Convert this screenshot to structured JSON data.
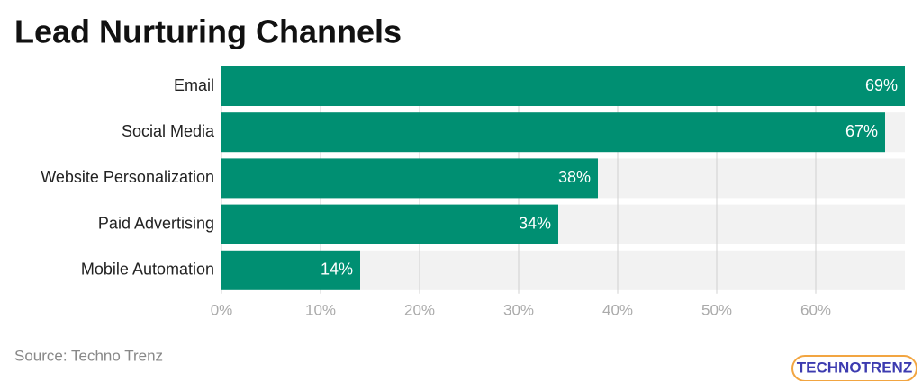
{
  "chart_data": {
    "type": "bar",
    "orientation": "horizontal",
    "title": "Lead Nurturing Channels",
    "categories": [
      "Email",
      "Social Media",
      "Website Personalization",
      "Paid Advertising",
      "Mobile Automation"
    ],
    "values": [
      69,
      67,
      38,
      34,
      14
    ],
    "value_labels": [
      "69%",
      "67%",
      "38%",
      "34%",
      "14%"
    ],
    "color": "#008f72",
    "xlim": [
      0,
      69
    ],
    "xticks": [
      {
        "value": 0,
        "label": "0%"
      },
      {
        "value": 10,
        "label": "10%"
      },
      {
        "value": 20,
        "label": "20%"
      },
      {
        "value": 30,
        "label": "30%"
      },
      {
        "value": 40,
        "label": "40%"
      },
      {
        "value": 50,
        "label": "50%"
      },
      {
        "value": 60,
        "label": "60%"
      }
    ],
    "grid": true,
    "source": "Source: Techno Trenz",
    "logo": "TECHNOTRENZ"
  }
}
